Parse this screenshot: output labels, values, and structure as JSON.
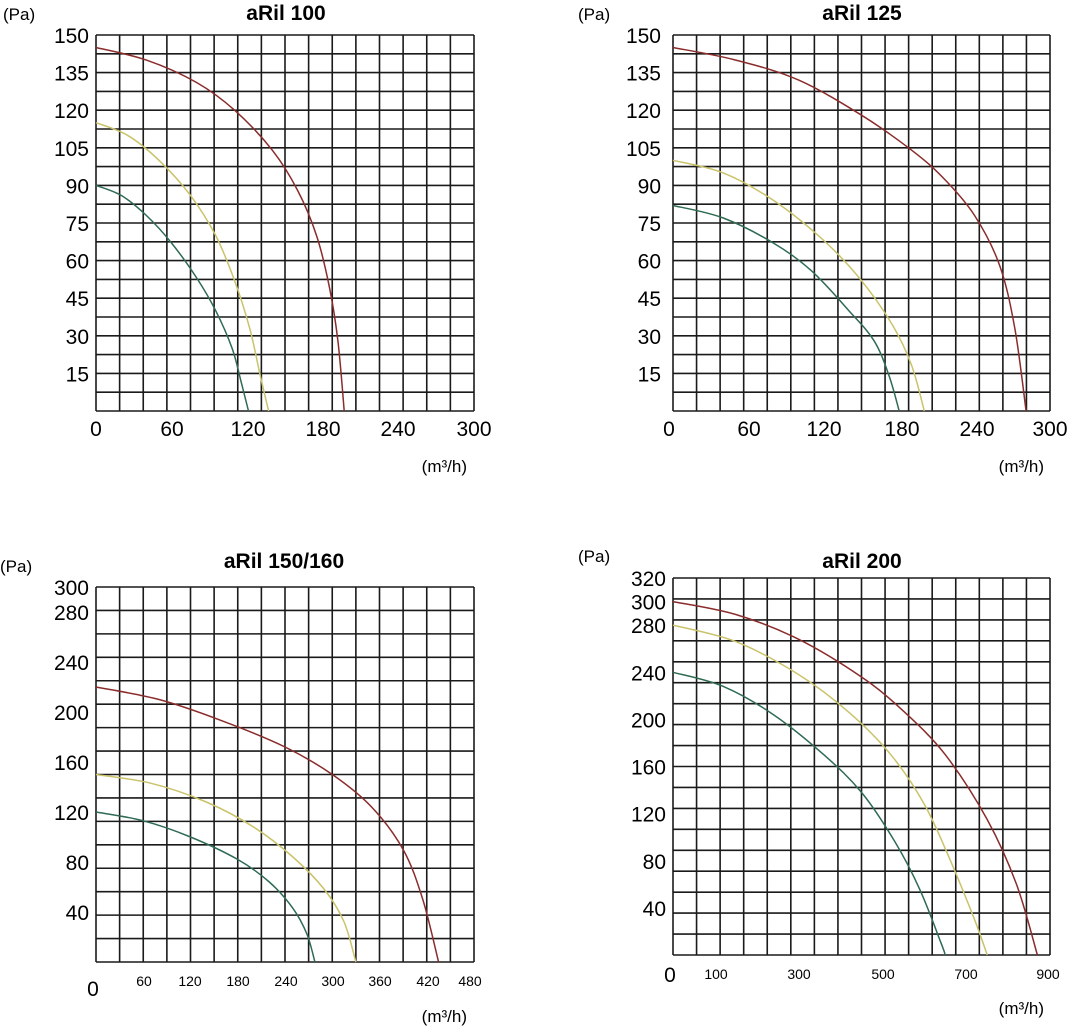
{
  "colors": {
    "red": "#8b2c2c",
    "yellow": "#c9c36a",
    "green": "#2f6b53"
  },
  "chart_data": [
    {
      "type": "line",
      "title": "aRil 100",
      "ylabel": "(Pa)",
      "xlabel": "(m³/h)",
      "xlim": [
        0,
        300
      ],
      "ylim": [
        0,
        150
      ],
      "x_ticks": [
        "0",
        "60",
        "120",
        "180",
        "240",
        "300"
      ],
      "y_ticks": [
        "15",
        "30",
        "45",
        "60",
        "75",
        "90",
        "105",
        "120",
        "135",
        "150"
      ],
      "series": [
        {
          "color": "red",
          "points": [
            [
              0,
              145
            ],
            [
              40,
              140
            ],
            [
              80,
              131
            ],
            [
              110,
              120
            ],
            [
              140,
              104
            ],
            [
              160,
              88
            ],
            [
              175,
              70
            ],
            [
              185,
              50
            ],
            [
              192,
              28
            ],
            [
              197,
              0
            ]
          ]
        },
        {
          "color": "yellow",
          "points": [
            [
              0,
              115
            ],
            [
              25,
              110
            ],
            [
              50,
              100
            ],
            [
              75,
              86
            ],
            [
              95,
              70
            ],
            [
              110,
              52
            ],
            [
              122,
              33
            ],
            [
              130,
              15
            ],
            [
              137,
              0
            ]
          ]
        },
        {
          "color": "green",
          "points": [
            [
              0,
              90
            ],
            [
              20,
              86
            ],
            [
              40,
              78
            ],
            [
              60,
              67
            ],
            [
              80,
              53
            ],
            [
              95,
              40
            ],
            [
              108,
              25
            ],
            [
              115,
              12
            ],
            [
              121,
              0
            ]
          ]
        }
      ]
    },
    {
      "type": "line",
      "title": "aRil 125",
      "ylabel": "(Pa)",
      "xlabel": "(m³/h)",
      "xlim": [
        0,
        300
      ],
      "ylim": [
        0,
        150
      ],
      "x_ticks": [
        "0",
        "60",
        "120",
        "180",
        "240",
        "300"
      ],
      "y_ticks": [
        "15",
        "30",
        "45",
        "60",
        "75",
        "90",
        "105",
        "120",
        "135",
        "150"
      ],
      "series": [
        {
          "color": "red",
          "points": [
            [
              0,
              145
            ],
            [
              50,
              140
            ],
            [
              100,
              132
            ],
            [
              150,
              118
            ],
            [
              190,
              104
            ],
            [
              215,
              93
            ],
            [
              240,
              78
            ],
            [
              260,
              58
            ],
            [
              272,
              33
            ],
            [
              281,
              0
            ]
          ]
        },
        {
          "color": "yellow",
          "points": [
            [
              0,
              100
            ],
            [
              40,
              95
            ],
            [
              80,
              84
            ],
            [
              120,
              68
            ],
            [
              150,
              52
            ],
            [
              175,
              34
            ],
            [
              190,
              18
            ],
            [
              200,
              0
            ]
          ]
        },
        {
          "color": "green",
          "points": [
            [
              0,
              82
            ],
            [
              40,
              77
            ],
            [
              80,
              67
            ],
            [
              110,
              56
            ],
            [
              140,
              40
            ],
            [
              160,
              28
            ],
            [
              172,
              14
            ],
            [
              180,
              0
            ]
          ]
        }
      ]
    },
    {
      "type": "line",
      "title": "aRil 150/160",
      "ylabel": "(Pa)",
      "xlabel": "(m³/h)",
      "xlim": [
        0,
        480
      ],
      "ylim": [
        0,
        300
      ],
      "x_ticks": [
        "60",
        "120",
        "180",
        "240",
        "300",
        "360",
        "420",
        "480"
      ],
      "x_zero": "0",
      "y_ticks": [
        "40",
        "80",
        "120",
        "160",
        "200",
        "240",
        "280",
        "300"
      ],
      "series": [
        {
          "color": "red",
          "points": [
            [
              0,
              220
            ],
            [
              80,
              210
            ],
            [
              160,
              193
            ],
            [
              240,
              172
            ],
            [
              300,
              150
            ],
            [
              350,
              124
            ],
            [
              390,
              90
            ],
            [
              415,
              50
            ],
            [
              435,
              0
            ]
          ]
        },
        {
          "color": "yellow",
          "points": [
            [
              0,
              150
            ],
            [
              70,
              143
            ],
            [
              140,
              128
            ],
            [
              200,
              108
            ],
            [
              250,
              84
            ],
            [
              290,
              58
            ],
            [
              315,
              32
            ],
            [
              330,
              0
            ]
          ]
        },
        {
          "color": "green",
          "points": [
            [
              0,
              120
            ],
            [
              60,
              113
            ],
            [
              120,
              100
            ],
            [
              180,
              82
            ],
            [
              220,
              64
            ],
            [
              250,
              43
            ],
            [
              268,
              22
            ],
            [
              278,
              0
            ]
          ]
        }
      ]
    },
    {
      "type": "line",
      "title": "aRil 200",
      "ylabel": "(Pa)",
      "xlabel": "(m³/h)",
      "xlim": [
        0,
        900
      ],
      "ylim": [
        0,
        320
      ],
      "x_ticks": [
        "100",
        "300",
        "500",
        "700",
        "900"
      ],
      "x_zero": "0",
      "y_ticks": [
        "40",
        "80",
        "120",
        "160",
        "200",
        "240",
        "280",
        "300",
        "320"
      ],
      "series": [
        {
          "color": "red",
          "points": [
            [
              0,
              300
            ],
            [
              150,
              289
            ],
            [
              300,
              268
            ],
            [
              450,
              236
            ],
            [
              550,
              207
            ],
            [
              650,
              170
            ],
            [
              750,
              115
            ],
            [
              820,
              60
            ],
            [
              870,
              0
            ]
          ]
        },
        {
          "color": "yellow",
          "points": [
            [
              0,
              280
            ],
            [
              150,
              266
            ],
            [
              300,
              238
            ],
            [
              420,
              206
            ],
            [
              520,
              170
            ],
            [
              600,
              128
            ],
            [
              660,
              82
            ],
            [
              720,
              30
            ],
            [
              750,
              0
            ]
          ]
        },
        {
          "color": "green",
          "points": [
            [
              0,
              240
            ],
            [
              120,
              228
            ],
            [
              240,
              204
            ],
            [
              360,
              170
            ],
            [
              450,
              138
            ],
            [
              530,
              96
            ],
            [
              590,
              55
            ],
            [
              640,
              10
            ],
            [
              650,
              0
            ]
          ]
        }
      ]
    }
  ]
}
